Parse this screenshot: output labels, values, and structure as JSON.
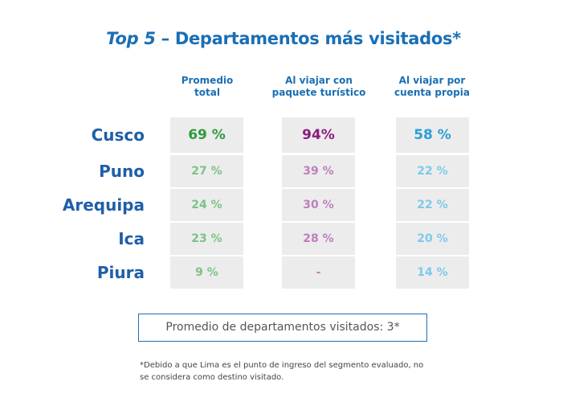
{
  "chart_data": {
    "type": "table",
    "title_italic": "Top 5",
    "title_rest": " – Departamentos más visitados*",
    "columns": [
      "Promedio total",
      "Al viajar con paquete turístico",
      "Al viajar por cuenta propia"
    ],
    "columns_lines": [
      [
        "Promedio",
        "total"
      ],
      [
        "Al viajar con",
        "paquete turístico"
      ],
      [
        "Al viajar por",
        "cuenta propia"
      ]
    ],
    "rows": [
      {
        "label": "Cusco",
        "values": [
          "69 %",
          "94%",
          "58 %"
        ]
      },
      {
        "label": "Puno",
        "values": [
          "27 %",
          "39 %",
          "22 %"
        ]
      },
      {
        "label": "Arequipa",
        "values": [
          "24 %",
          "30 %",
          "22 %"
        ]
      },
      {
        "label": "Ica",
        "values": [
          "23 %",
          "28 %",
          "20 %"
        ]
      },
      {
        "label": "Piura",
        "values": [
          "9 %",
          "-",
          "14 %"
        ]
      }
    ],
    "summary": "Promedio de departamentos visitados: 3*",
    "footnote": "*Debido a que Lima es el punto de ingreso del segmento evaluado, no se considera como destino visitado."
  },
  "colors": {
    "title": "#1a6fb5",
    "row_label": "#1f5fa8",
    "cell_bg": "#ececec",
    "col_strong": [
      "#2e9a3c",
      "#8b1c7f",
      "#2a9fd8"
    ],
    "col_light": [
      "#7cc386",
      "#c07fbd",
      "#7dc9ea"
    ]
  }
}
